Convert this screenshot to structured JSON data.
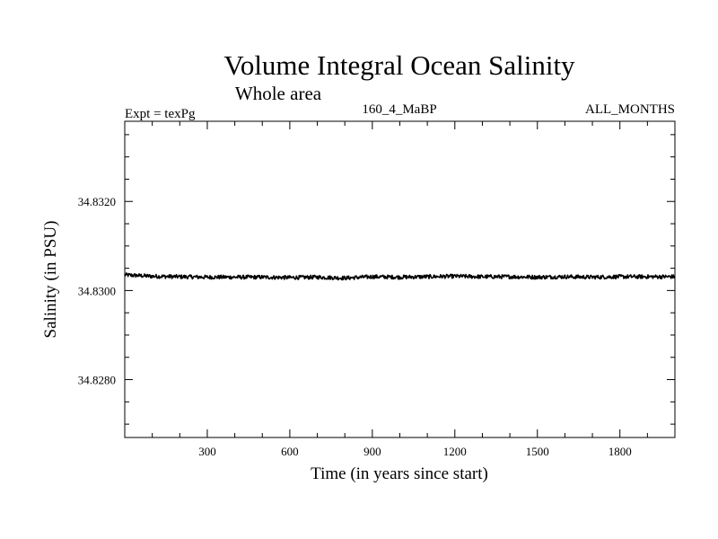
{
  "chart_data": {
    "type": "line",
    "title": "Volume Integral Ocean Salinity",
    "subtitle": "Whole area",
    "experiment": "Expt = texPg",
    "period": "160_4_MaBP",
    "months": "ALL_MONTHS",
    "xlabel": "Time (in years since start)",
    "ylabel": "Salinity (in PSU)",
    "xlim": [
      0,
      2000
    ],
    "ylim": [
      34.8267,
      34.8338
    ],
    "x_ticks": [
      300,
      600,
      900,
      1200,
      1500,
      1800
    ],
    "x_tick_labels": [
      "300",
      "600",
      "900",
      "1200",
      "1500",
      "1800"
    ],
    "y_ticks": [
      34.828,
      34.83,
      34.832
    ],
    "y_tick_labels": [
      "34.8280",
      "34.8300",
      "34.8320"
    ],
    "grid": false,
    "series": [
      {
        "name": "Salinity",
        "color": "#000000",
        "x": [
          0,
          100,
          200,
          300,
          400,
          500,
          600,
          700,
          800,
          900,
          1000,
          1100,
          1200,
          1300,
          1400,
          1500,
          1600,
          1700,
          1800,
          1900,
          2000
        ],
        "values": [
          34.83035,
          34.83032,
          34.83031,
          34.8303,
          34.8303,
          34.8303,
          34.83029,
          34.8303,
          34.83028,
          34.83031,
          34.8303,
          34.83031,
          34.83032,
          34.83031,
          34.83031,
          34.8303,
          34.83031,
          34.8303,
          34.83031,
          34.83031,
          34.83031
        ]
      }
    ]
  }
}
